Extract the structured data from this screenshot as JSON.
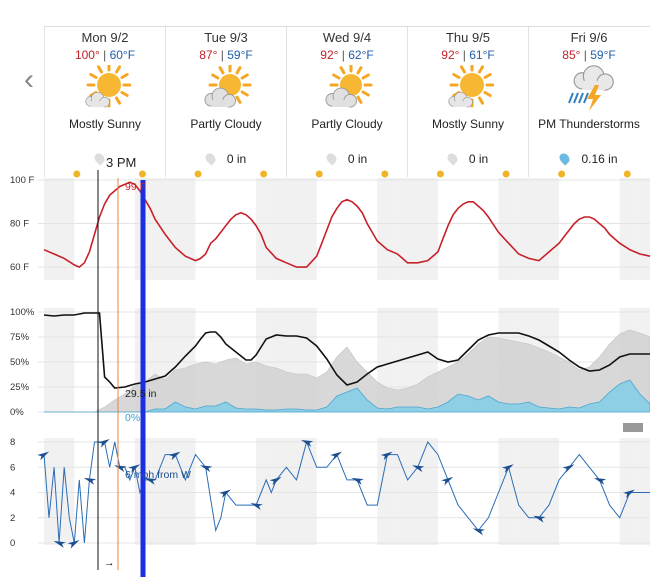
{
  "nav": {
    "prev_icon": "chevron-left-icon",
    "prev_glyph": "‹"
  },
  "days": [
    {
      "name": "Mon 9/2",
      "hi": "100°",
      "lo": "60°F",
      "icon": "mostly-sunny-icon",
      "condition": "Mostly Sunny",
      "precip": ""
    },
    {
      "name": "Tue 9/3",
      "hi": "87°",
      "lo": "59°F",
      "icon": "partly-cloudy-icon",
      "condition": "Partly Cloudy",
      "precip": "0 in"
    },
    {
      "name": "Wed 9/4",
      "hi": "92°",
      "lo": "62°F",
      "icon": "partly-cloudy-icon",
      "condition": "Partly Cloudy",
      "precip": "0 in"
    },
    {
      "name": "Thu 9/5",
      "hi": "92°",
      "lo": "61°F",
      "icon": "mostly-sunny-icon",
      "condition": "Mostly Sunny",
      "precip": "0 in"
    },
    {
      "name": "Fri 9/6",
      "hi": "85°",
      "lo": "59°F",
      "icon": "thunderstorm-icon",
      "condition": "PM Thunderstorms",
      "precip": "0.16 in"
    }
  ],
  "cursor": {
    "time": "3 PM",
    "temp": "99 F",
    "pressure": "29.5 in",
    "precip_chance": "0%",
    "wind": "6 mph from W",
    "wind_arrow": "→"
  },
  "colors": {
    "temp": "#c8202a",
    "humidity": "#111111",
    "cloud": "#d4d4d4",
    "precip": "#8ecfe6",
    "wind": "#2a6db5",
    "cursor_blue": "#1a2fe0",
    "cursor_orange": "#e8843a"
  },
  "chart_data": [
    {
      "type": "line",
      "name": "temperature",
      "ylabels": [
        "100 F",
        "80 F",
        "60 F"
      ],
      "ylim": [
        55,
        100
      ],
      "x_hours": [
        0,
        2,
        4,
        6,
        7,
        8,
        9,
        10,
        11,
        12,
        13,
        14,
        15,
        16,
        17,
        18,
        19,
        20,
        21,
        22,
        24,
        26,
        28,
        30,
        31,
        32,
        33,
        34,
        35,
        36,
        37,
        38,
        39,
        40,
        41,
        42,
        43,
        44,
        46,
        48,
        50,
        52,
        54,
        55,
        56,
        57,
        58,
        59,
        60,
        61,
        62,
        63,
        64,
        66,
        68,
        70,
        72,
        74,
        76,
        78,
        79,
        80,
        81,
        82,
        83,
        84,
        85,
        86,
        87,
        88,
        90,
        92,
        94,
        96,
        98,
        100,
        102,
        103,
        104,
        105,
        106,
        107,
        108,
        109,
        110,
        111,
        112,
        114,
        116,
        118,
        120
      ],
      "y": [
        68,
        66,
        64,
        61,
        60,
        62,
        67,
        75,
        83,
        89,
        93,
        95,
        97,
        98,
        99,
        98,
        95,
        91,
        87,
        82,
        75,
        69,
        65,
        63,
        64,
        66,
        71,
        73,
        76,
        79,
        82,
        84,
        85,
        84,
        82,
        79,
        75,
        69,
        64,
        62,
        60,
        60,
        65,
        71,
        77,
        83,
        87,
        90,
        91,
        90,
        88,
        85,
        80,
        72,
        68,
        66,
        62,
        62,
        63,
        67,
        73,
        79,
        84,
        87,
        89,
        90,
        90,
        88,
        86,
        83,
        76,
        71,
        66,
        64,
        63,
        67,
        71,
        74,
        77,
        80,
        82,
        83,
        83,
        82,
        80,
        78,
        75,
        71,
        68,
        66,
        65
      ]
    },
    {
      "type": "line",
      "name": "humidity",
      "ylabels": [
        "100%",
        "75%",
        "50%",
        "25%",
        "0%"
      ],
      "ylim": [
        0,
        100
      ],
      "x_hours": [
        0,
        2,
        4,
        6,
        8,
        10,
        11,
        12,
        13,
        14,
        16,
        18,
        20,
        22,
        24,
        26,
        28,
        30,
        31,
        32,
        33,
        34,
        35,
        36,
        38,
        40,
        41,
        42,
        43,
        44,
        46,
        48,
        50,
        52,
        54,
        56,
        58,
        60,
        62,
        64,
        66,
        68,
        70,
        72,
        74,
        76,
        78,
        80,
        82,
        84,
        86,
        88,
        90,
        92,
        94,
        96,
        98,
        100,
        102,
        104,
        106,
        108,
        110,
        112,
        114,
        116,
        118,
        120
      ],
      "y": [
        97,
        96,
        97,
        97,
        99,
        99,
        99,
        35,
        30,
        24,
        25,
        28,
        30,
        33,
        36,
        45,
        56,
        66,
        73,
        79,
        80,
        80,
        75,
        68,
        60,
        52,
        52,
        57,
        65,
        73,
        77,
        76,
        76,
        74,
        66,
        53,
        37,
        27,
        30,
        38,
        45,
        48,
        51,
        54,
        57,
        60,
        53,
        50,
        52,
        62,
        72,
        77,
        79,
        79,
        79,
        76,
        72,
        66,
        60,
        52,
        45,
        41,
        42,
        47,
        55,
        58,
        58,
        58
      ]
    },
    {
      "type": "area",
      "name": "cloud cover",
      "x_hours": [
        0,
        6,
        10,
        12,
        14,
        16,
        18,
        20,
        22,
        24,
        26,
        28,
        30,
        32,
        34,
        36,
        38,
        40,
        42,
        44,
        46,
        48,
        50,
        52,
        54,
        56,
        58,
        60,
        62,
        64,
        66,
        68,
        70,
        72,
        74,
        76,
        78,
        80,
        82,
        84,
        86,
        88,
        90,
        92,
        94,
        96,
        98,
        100,
        102,
        104,
        106,
        108,
        110,
        112,
        114,
        116,
        118,
        120
      ],
      "y": [
        0,
        0,
        0,
        5,
        12,
        18,
        26,
        30,
        38,
        32,
        42,
        44,
        48,
        50,
        48,
        52,
        54,
        48,
        50,
        46,
        44,
        40,
        38,
        38,
        34,
        40,
        55,
        65,
        50,
        40,
        30,
        24,
        22,
        24,
        28,
        35,
        40,
        45,
        50,
        58,
        68,
        75,
        74,
        72,
        70,
        68,
        64,
        60,
        55,
        50,
        42,
        45,
        55,
        68,
        78,
        82,
        79,
        75
      ]
    },
    {
      "type": "area",
      "name": "precipitation chance",
      "x_hours": [
        0,
        20,
        22,
        24,
        26,
        28,
        30,
        32,
        34,
        36,
        38,
        40,
        42,
        44,
        46,
        48,
        50,
        52,
        54,
        56,
        58,
        60,
        62,
        64,
        66,
        68,
        70,
        72,
        74,
        76,
        78,
        80,
        82,
        84,
        86,
        88,
        90,
        92,
        94,
        96,
        98,
        100,
        102,
        104,
        106,
        108,
        110,
        112,
        114,
        116,
        118,
        120
      ],
      "y": [
        0,
        0,
        3,
        3,
        10,
        5,
        3,
        6,
        6,
        10,
        4,
        3,
        3,
        2,
        2,
        3,
        3,
        2,
        2,
        5,
        16,
        20,
        24,
        12,
        4,
        3,
        5,
        5,
        5,
        3,
        5,
        10,
        18,
        16,
        12,
        16,
        10,
        8,
        8,
        10,
        5,
        4,
        3,
        5,
        4,
        8,
        10,
        20,
        28,
        32,
        18,
        8
      ]
    },
    {
      "type": "line",
      "name": "wind",
      "ylabels": [
        "8",
        "6",
        "4",
        "2",
        "0"
      ],
      "ylim": [
        0,
        8
      ],
      "x_hours": [
        0,
        1,
        2,
        3,
        4,
        5,
        6,
        7,
        8,
        9,
        10,
        11,
        12,
        13,
        14,
        15,
        16,
        17,
        18,
        19,
        20,
        21,
        22,
        24,
        26,
        28,
        30,
        32,
        34,
        35,
        36,
        38,
        40,
        42,
        44,
        45,
        46,
        48,
        50,
        52,
        54,
        56,
        58,
        59,
        60,
        62,
        64,
        66,
        68,
        70,
        72,
        74,
        76,
        78,
        80,
        82,
        84,
        86,
        88,
        90,
        92,
        94,
        96,
        98,
        100,
        102,
        104,
        106,
        108,
        110,
        112,
        114,
        116,
        118,
        120
      ],
      "y": [
        7,
        2,
        6,
        0,
        6,
        2,
        0,
        5,
        0,
        5,
        8,
        8,
        8,
        6,
        8,
        6,
        6,
        5,
        6,
        4,
        5,
        5,
        5,
        7,
        7,
        5,
        7,
        6,
        1,
        2,
        4,
        3,
        3,
        3,
        5,
        4,
        5,
        6,
        5,
        8,
        6,
        6,
        7,
        6,
        5,
        5,
        3,
        3,
        7,
        7,
        5,
        6,
        8,
        7,
        5,
        3,
        2,
        1,
        2,
        4,
        6,
        3,
        2,
        2,
        3,
        5,
        6,
        7,
        6,
        5,
        3,
        2,
        4,
        4,
        4
      ]
    }
  ]
}
